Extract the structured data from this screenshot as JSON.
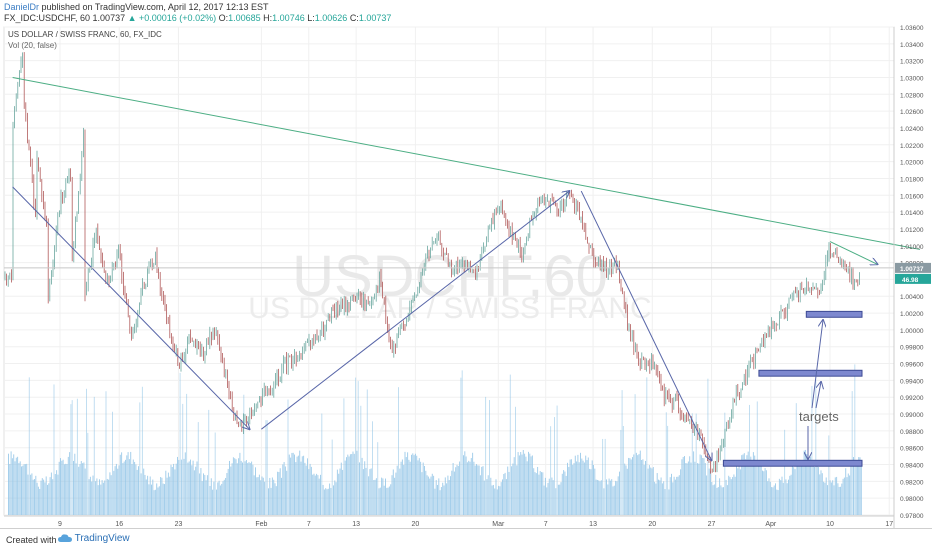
{
  "header": {
    "author": "DanielDr",
    "published_text": " published on TradingView.com, April 12, 2017 12:13 EST",
    "symbol_line": "FX_IDC:USDCHF, 60",
    "last": "1.00737",
    "change": "▲ +0.00016 (+0.02%)",
    "o_label": "O:",
    "o_value": "1.00685",
    "h_label": "H:",
    "h_value": "1.00746",
    "l_label": "L:",
    "l_value": "1.00626",
    "c_label": "C:",
    "c_value": "1.00737"
  },
  "footer": {
    "created_with": "Created with",
    "brand": "TradingView"
  },
  "colors": {
    "up_candle": "#6aa79f",
    "down_candle": "#b15a5a",
    "trendline": "#4cae84",
    "arrows": "#5866a8",
    "target_box_fill": "#7d88cf",
    "target_box_stroke": "#3d4a94",
    "volume": "#8ec3e6",
    "price_badge": "#8a9aa2",
    "vol_badge": "#26a69a"
  },
  "chart_data": {
    "type": "candlestick",
    "title": "US DOLLAR / SWISS FRANC, 60, FX_IDC",
    "indicator": "Vol (20, false)",
    "watermark_symbol": "USDCHF, 60",
    "watermark_name": "US DOLLAR / SWISS FRANC",
    "ylim": [
      0.978,
      1.036
    ],
    "y_ticks": [
      "1.03600",
      "1.03400",
      "1.03200",
      "1.03000",
      "1.02800",
      "1.02600",
      "1.02400",
      "1.02200",
      "1.02000",
      "1.01800",
      "1.01600",
      "1.01400",
      "1.01200",
      "1.01000",
      "1.00800",
      "1.00600",
      "1.00400",
      "1.00200",
      "1.00000",
      "0.99800",
      "0.99600",
      "0.99400",
      "0.99200",
      "0.99000",
      "0.98800",
      "0.98600",
      "0.98400",
      "0.98200",
      "0.98000",
      "0.97800"
    ],
    "x_ticks": [
      "9",
      "16",
      "23",
      "Feb",
      "7",
      "13",
      "20",
      "Mar",
      "7",
      "13",
      "20",
      "27",
      "Apr",
      "10",
      "17"
    ],
    "last_price_label": "1.00737",
    "volume_label": "46.98",
    "grid": true,
    "annotation_text": "targets",
    "price_path": [
      [
        "2017-01-03",
        1.024
      ],
      [
        "2017-01-03",
        1.033
      ],
      [
        "2017-01-04",
        1.026
      ],
      [
        "2017-01-05",
        1.013
      ],
      [
        "2017-01-05",
        1.021
      ],
      [
        "2017-01-06",
        1.011
      ],
      [
        "2017-01-06",
        1.004
      ],
      [
        "2017-01-09",
        1.015
      ],
      [
        "2017-01-10",
        1.019
      ],
      [
        "2017-01-10",
        1.008
      ],
      [
        "2017-01-11",
        1.023
      ],
      [
        "2017-01-11",
        1.003
      ],
      [
        "2017-01-12",
        1.012
      ],
      [
        "2017-01-13",
        1.006
      ],
      [
        "2017-01-16",
        1.009
      ],
      [
        "2017-01-17",
        0.999
      ],
      [
        "2017-01-18",
        1.005
      ],
      [
        "2017-01-19",
        1.009
      ],
      [
        "2017-01-20",
        1.001
      ],
      [
        "2017-01-23",
        0.996
      ],
      [
        "2017-01-24",
        0.999
      ],
      [
        "2017-01-25",
        0.997
      ],
      [
        "2017-01-26",
        1.0
      ],
      [
        "2017-01-27",
        0.9945
      ],
      [
        "2017-01-30",
        0.988
      ],
      [
        "2017-01-31",
        0.99
      ],
      [
        "2017-02-01",
        0.992
      ],
      [
        "2017-02-02",
        0.993
      ],
      [
        "2017-02-03",
        0.996
      ],
      [
        "2017-02-06",
        0.997
      ],
      [
        "2017-02-07",
        0.998
      ],
      [
        "2017-02-08",
        0.9995
      ],
      [
        "2017-02-09",
        1.002
      ],
      [
        "2017-02-10",
        1.003
      ],
      [
        "2017-02-13",
        1.004
      ],
      [
        "2017-02-14",
        1.003
      ],
      [
        "2017-02-15",
        1.006
      ],
      [
        "2017-02-16",
        0.997
      ],
      [
        "2017-02-17",
        1.001
      ],
      [
        "2017-02-20",
        1.004
      ],
      [
        "2017-02-21",
        1.009
      ],
      [
        "2017-02-22",
        1.011
      ],
      [
        "2017-02-23",
        1.007
      ],
      [
        "2017-02-24",
        1.008
      ],
      [
        "2017-02-27",
        1.006
      ],
      [
        "2017-02-28",
        1.011
      ],
      [
        "2017-03-01",
        1.015
      ],
      [
        "2017-03-02",
        1.012
      ],
      [
        "2017-03-03",
        1.009
      ],
      [
        "2017-03-06",
        1.014
      ],
      [
        "2017-03-07",
        1.016
      ],
      [
        "2017-03-08",
        1.014
      ],
      [
        "2017-03-09",
        1.016
      ],
      [
        "2017-03-10",
        1.013
      ],
      [
        "2017-03-13",
        1.009
      ],
      [
        "2017-03-14",
        1.007
      ],
      [
        "2017-03-15",
        1.008
      ],
      [
        "2017-03-16",
        1.0
      ],
      [
        "2017-03-17",
        0.996
      ],
      [
        "2017-03-20",
        0.996
      ],
      [
        "2017-03-21",
        0.992
      ],
      [
        "2017-03-22",
        0.9915
      ],
      [
        "2017-03-23",
        0.989
      ],
      [
        "2017-03-24",
        0.988
      ],
      [
        "2017-03-27",
        0.983
      ],
      [
        "2017-03-28",
        0.987
      ],
      [
        "2017-03-29",
        0.992
      ],
      [
        "2017-03-30",
        0.995
      ],
      [
        "2017-03-31",
        0.998
      ],
      [
        "2017-04-03",
        1.0
      ],
      [
        "2017-04-04",
        1.002
      ],
      [
        "2017-04-05",
        1.004
      ],
      [
        "2017-04-06",
        1.005
      ],
      [
        "2017-04-07",
        1.004
      ],
      [
        "2017-04-10",
        1.0095
      ],
      [
        "2017-04-11",
        1.0075
      ],
      [
        "2017-04-12",
        1.006
      ]
    ],
    "drawings": {
      "trendline": [
        [
          "2017-01-03",
          1.03
        ],
        [
          "2017-04-14",
          1.0098
        ]
      ],
      "arrows": [
        [
          [
            "2017-01-03",
            1.017
          ],
          [
            "2017-01-31",
            0.9882
          ]
        ],
        [
          [
            "2017-02-01",
            0.9882
          ],
          [
            "2017-03-09",
            1.0165
          ]
        ],
        [
          [
            "2017-03-10",
            1.0165
          ],
          [
            "2017-03-27",
            0.9845
          ]
        ],
        [
          [
            "2017-04-10",
            1.0105
          ],
          [
            "2017-04-14",
            1.0078
          ]
        ]
      ],
      "target_zones": [
        [
          [
            "2017-04-06",
            1.0022
          ],
          [
            "2017-04-13",
            1.0015
          ]
        ],
        [
          [
            "2017-03-31",
            0.9952
          ],
          [
            "2017-04-13",
            0.9945
          ]
        ],
        [
          [
            "2017-03-28",
            0.9845
          ],
          [
            "2017-04-13",
            0.9838
          ]
        ]
      ]
    }
  }
}
